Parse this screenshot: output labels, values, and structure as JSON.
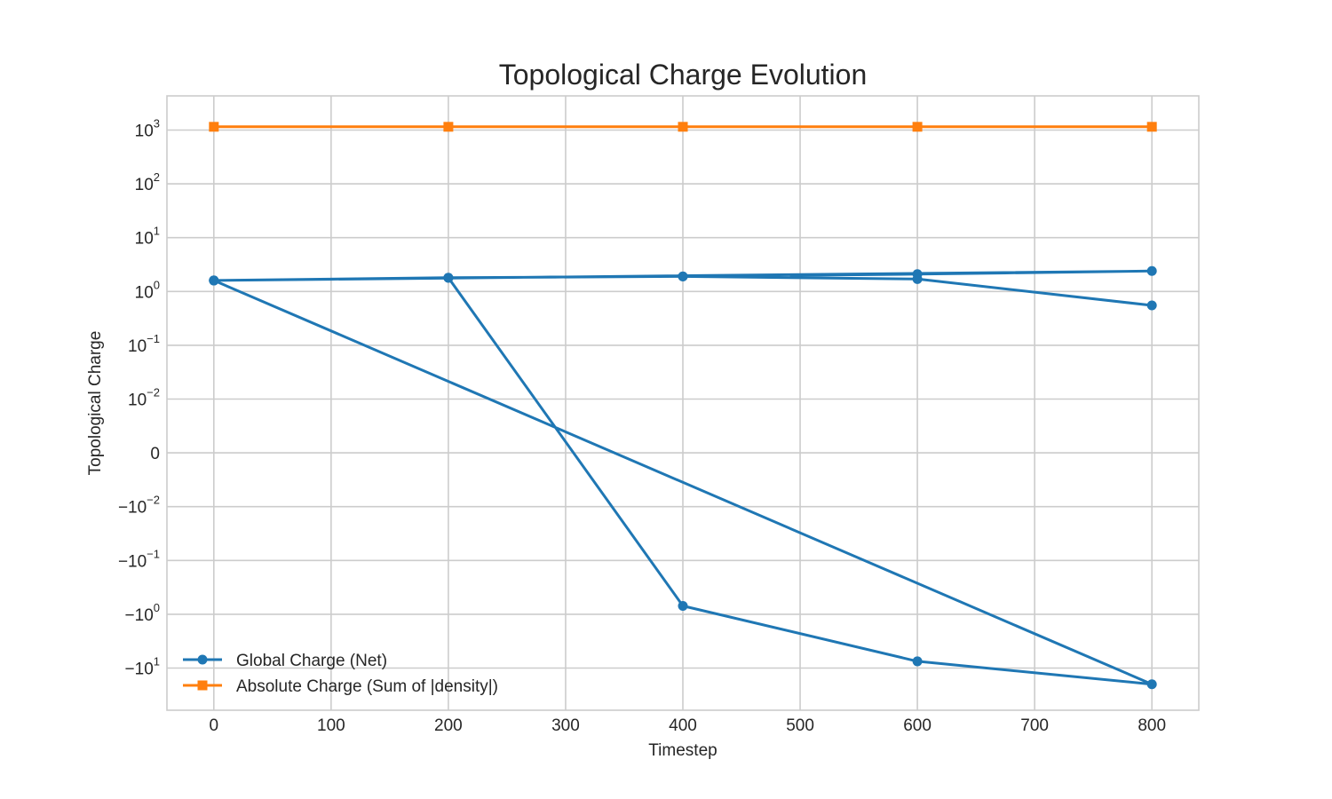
{
  "chart_data": {
    "type": "line",
    "title": "Topological Charge Evolution",
    "xlabel": "Timestep",
    "ylabel": "Topological Charge",
    "xlim": [
      -40,
      840
    ],
    "x_ticks": [
      0,
      100,
      200,
      300,
      400,
      500,
      600,
      700,
      800
    ],
    "y_scale": "symlog",
    "y_linthresh": 0.01,
    "y_ticks": [
      {
        "value": 1000,
        "base": "10",
        "exp": "3"
      },
      {
        "value": 100,
        "base": "10",
        "exp": "2"
      },
      {
        "value": 10,
        "base": "10",
        "exp": "1"
      },
      {
        "value": 1,
        "base": "10",
        "exp": "0"
      },
      {
        "value": 0.1,
        "base": "10",
        "exp": "−1"
      },
      {
        "value": 0.01,
        "base": "10",
        "exp": "−2"
      },
      {
        "value": 0,
        "base": "0",
        "exp": ""
      },
      {
        "value": -0.01,
        "base": "−10",
        "exp": "−2"
      },
      {
        "value": -0.1,
        "base": "−10",
        "exp": "−1"
      },
      {
        "value": -1,
        "base": "−10",
        "exp": "0"
      },
      {
        "value": -10,
        "base": "−10",
        "exp": "1"
      }
    ],
    "grid": true,
    "legend_position": "lower-left",
    "series": [
      {
        "name": "Global Charge (Net)",
        "color": "#1f77b4",
        "marker": "circle",
        "x": [
          0,
          200,
          400,
          600,
          800,
          0,
          200,
          400,
          600,
          800,
          0,
          200,
          400,
          600,
          800
        ],
        "y": [
          1.6,
          1.8,
          1.9,
          2.1,
          2.4,
          1.6,
          1.8,
          -0.7,
          -7.5,
          -20,
          1.6,
          1.8,
          1.9,
          1.7,
          0.55
        ]
      },
      {
        "name": "Absolute Charge (Sum of |density|)",
        "color": "#ff7f0e",
        "marker": "square",
        "x": [
          0,
          200,
          400,
          600,
          800
        ],
        "y": [
          1150,
          1150,
          1150,
          1150,
          1150
        ]
      }
    ]
  }
}
